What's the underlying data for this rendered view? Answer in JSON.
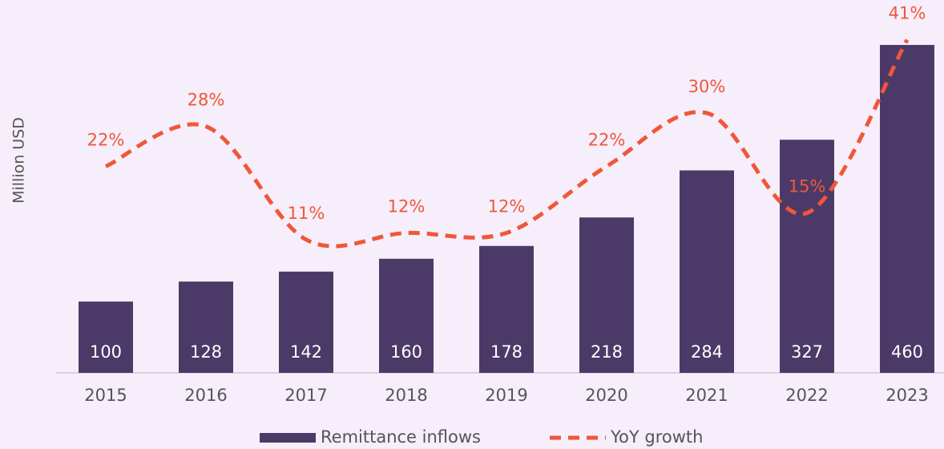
{
  "chart_data": {
    "type": "bar",
    "ylabel": "Million USD",
    "categories": [
      "2015",
      "2016",
      "2017",
      "2018",
      "2019",
      "2020",
      "2021",
      "2022",
      "2023"
    ],
    "ylim": [
      0,
      500
    ],
    "y2lim": [
      -9,
      44.5
    ],
    "series": [
      {
        "name": "Remittance inflows",
        "type": "bar",
        "color": "#4b3a68",
        "values": [
          100,
          128,
          142,
          160,
          178,
          218,
          284,
          327,
          460
        ]
      },
      {
        "name": "YoY growth",
        "type": "line",
        "axis": "y2",
        "color": "#f0573a",
        "dashed": true,
        "values": [
          22,
          28,
          11,
          12,
          12,
          22,
          30,
          15,
          41
        ],
        "value_labels": [
          "22%",
          "28%",
          "11%",
          "12%",
          "12%",
          "22%",
          "30%",
          "15%",
          "41%"
        ]
      }
    ]
  }
}
